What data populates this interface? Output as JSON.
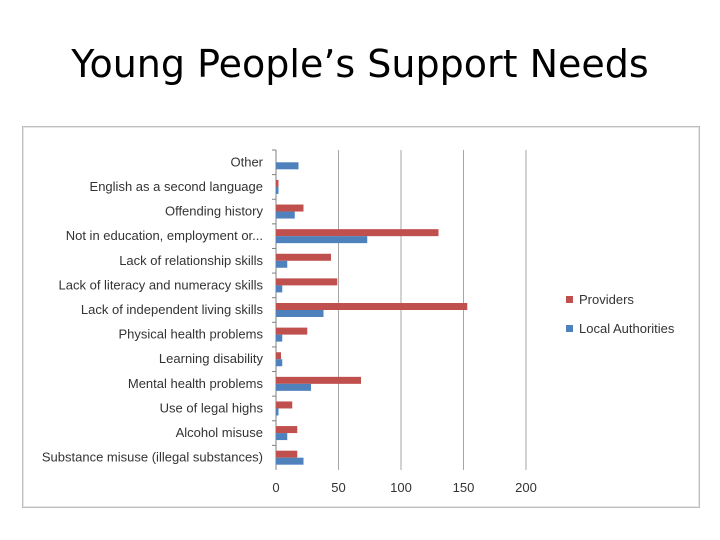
{
  "slide": {
    "title": "Young People’s Support Needs"
  },
  "chart_data": {
    "type": "bar",
    "orientation": "horizontal",
    "categories": [
      "Other",
      "English as a second language",
      "Offending history",
      "Not in education, employment or...",
      "Lack of relationship skills",
      "Lack of literacy and numeracy skills",
      "Lack of independent living skills",
      "Physical health problems",
      "Learning disability",
      "Mental health problems",
      "Use of legal highs",
      "Alcohol misuse",
      "Substance misuse (illegal substances)"
    ],
    "series": [
      {
        "name": "Providers",
        "color": "#c0504d",
        "values": [
          0,
          2,
          22,
          130,
          44,
          49,
          153,
          25,
          4,
          68,
          13,
          17,
          17
        ]
      },
      {
        "name": "Local Authorities",
        "color": "#4f81bd",
        "values": [
          18,
          2,
          15,
          73,
          9,
          5,
          38,
          5,
          5,
          28,
          2,
          9,
          22
        ]
      }
    ],
    "xlim": [
      0,
      200
    ],
    "xticks": [
      0,
      50,
      100,
      150,
      200
    ],
    "grid": "vertical",
    "legend": "right"
  }
}
